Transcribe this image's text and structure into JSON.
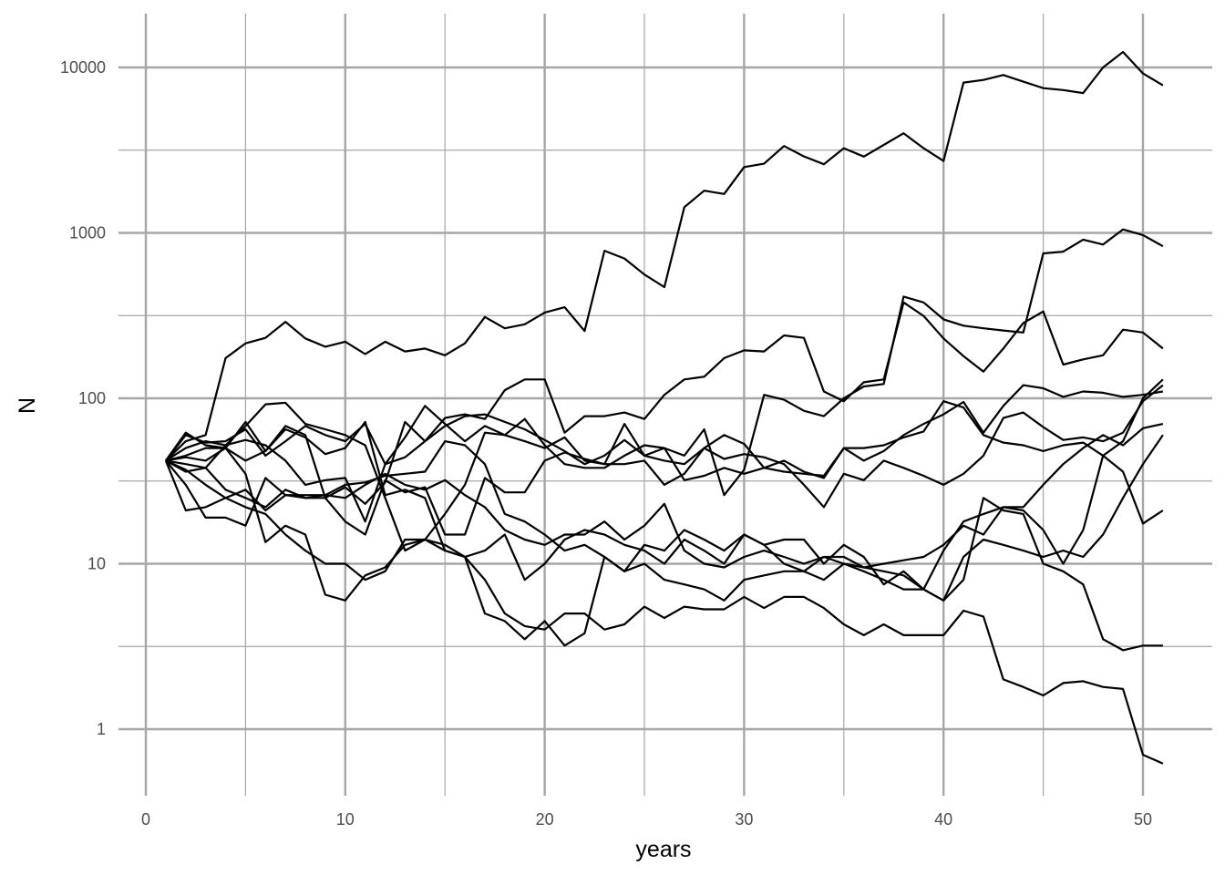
{
  "chart_data": {
    "type": "line",
    "title": "",
    "xlabel": "years",
    "ylabel": "N",
    "y_scale": "log10",
    "xlim": [
      0,
      52.5
    ],
    "ylim": [
      0.45,
      22000
    ],
    "x_ticks": [
      0,
      10,
      20,
      30,
      40,
      50
    ],
    "x_tick_labels": [
      "0",
      "10",
      "20",
      "30",
      "40",
      "50"
    ],
    "x_minor_ticks": [
      5,
      15,
      25,
      35,
      45
    ],
    "y_ticks": [
      1,
      10,
      100,
      1000,
      10000
    ],
    "y_tick_labels": [
      "1",
      "10",
      "100",
      "1000",
      "10000"
    ],
    "y_minor_ticks": [
      3.162,
      31.62,
      316.2,
      3162
    ],
    "grid": true,
    "legend": "none",
    "line_color": "#000000",
    "grid_color": "#a6a6a6",
    "x": [
      1,
      2,
      3,
      4,
      5,
      6,
      7,
      8,
      9,
      10,
      11,
      12,
      13,
      14,
      15,
      16,
      17,
      18,
      19,
      20,
      21,
      22,
      23,
      24,
      25,
      26,
      27,
      28,
      29,
      30,
      31,
      32,
      33,
      34,
      35,
      36,
      37,
      38,
      39,
      40,
      41,
      42,
      43,
      44,
      45,
      46,
      47,
      48,
      49,
      50,
      51
    ],
    "series": [
      {
        "values": [
          42,
          62,
          52,
          50,
          72,
          48,
          68,
          60,
          25,
          29,
          23,
          31,
          72,
          55,
          76,
          80,
          75,
          112,
          130,
          130,
          62,
          78,
          78,
          82,
          75,
          105,
          130,
          135,
          175,
          195,
          192,
          240,
          232,
          110,
          96,
          125,
          130,
          380,
          315,
          230,
          180,
          145,
          200,
          285,
          335,
          160,
          172,
          182,
          260,
          250,
          200
        ]
      },
      {
        "values": [
          42,
          55,
          60,
          175,
          215,
          232,
          290,
          230,
          205,
          220,
          185,
          220,
          192,
          200,
          182,
          215,
          310,
          265,
          280,
          330,
          355,
          255,
          780,
          700,
          560,
          470,
          1430,
          1800,
          1720,
          2500,
          2620,
          3350,
          2900,
          2600,
          3250,
          2890,
          3400,
          4000,
          3250,
          2720,
          8100,
          8400,
          9000,
          8200,
          7500,
          7300,
          7000,
          10000,
          12400,
          9200,
          7800
        ]
      },
      {
        "values": [
          42,
          60,
          54,
          55,
          65,
          45,
          55,
          68,
          60,
          55,
          70,
          40,
          44,
          55,
          68,
          78,
          80,
          72,
          65,
          56,
          48,
          40,
          45,
          56,
          45,
          50,
          45,
          65,
          26,
          37,
          105,
          98,
          84,
          78,
          100,
          118,
          122,
          412,
          380,
          300,
          275,
          265,
          257,
          250,
          752,
          770,
          910,
          850,
          1050,
          970,
          830
        ]
      },
      {
        "values": [
          42,
          50,
          55,
          52,
          68,
          92,
          94,
          70,
          65,
          60,
          52,
          25,
          12,
          14,
          20,
          30,
          62,
          60,
          55,
          50,
          58,
          42,
          40,
          70,
          45,
          42,
          40,
          50,
          43,
          46,
          44,
          40,
          30,
          22,
          35,
          32,
          42,
          38,
          34,
          30,
          35,
          45,
          76,
          82,
          67,
          56,
          58,
          55,
          62,
          96,
          120
        ]
      },
      {
        "values": [
          42,
          44,
          42,
          50,
          42,
          48,
          65,
          58,
          46,
          50,
          72,
          26,
          28,
          25,
          12,
          11,
          12,
          15,
          8,
          10,
          14,
          16,
          15,
          13,
          12,
          10,
          14,
          12,
          10,
          15,
          13,
          10,
          9,
          8,
          10,
          9,
          8,
          7,
          7,
          12,
          18,
          20,
          22,
          21,
          16,
          10,
          16,
          45,
          55,
          100,
          130
        ]
      },
      {
        "values": [
          42,
          37,
          30,
          25,
          22,
          20,
          15,
          12,
          10,
          10,
          8,
          9,
          14,
          14,
          13,
          11,
          5,
          4.5,
          3.5,
          4.5,
          3.2,
          3.8,
          11,
          9,
          10,
          8,
          7.5,
          7,
          6,
          8,
          8.5,
          9,
          9,
          11,
          11,
          9.5,
          9,
          8.5,
          7,
          6,
          8,
          25,
          21,
          20,
          10,
          9,
          7.5,
          3.5,
          3,
          3.2,
          3.2
        ]
      },
      {
        "values": [
          42,
          40,
          38,
          28,
          25,
          22,
          28,
          25,
          26,
          25,
          30,
          35,
          30,
          28,
          32,
          26,
          22,
          16,
          14,
          13,
          15,
          15,
          18,
          14,
          17,
          23,
          12,
          10,
          9.5,
          11,
          12,
          11,
          10,
          11,
          10,
          9.5,
          10,
          10.5,
          11,
          13,
          17,
          15,
          22,
          22,
          30,
          40,
          50,
          60,
          52,
          66,
          70
        ]
      },
      {
        "values": [
          42,
          45,
          50,
          50,
          35,
          13.5,
          17,
          15,
          6.5,
          6,
          8.5,
          9.5,
          13,
          14,
          12,
          11,
          8,
          5,
          4.2,
          4,
          5,
          5,
          4,
          4.3,
          5.5,
          4.7,
          5.5,
          5.3,
          5.3,
          6.3,
          5.4,
          6.3,
          6.3,
          5.4,
          4.3,
          3.7,
          4.3,
          3.7,
          3.7,
          3.7,
          5.2,
          4.8,
          2,
          1.8,
          1.6,
          1.9,
          1.95,
          1.8,
          1.75,
          0.7,
          0.62
        ]
      },
      {
        "values": [
          42,
          21,
          22,
          25,
          28,
          21,
          26,
          26,
          26,
          30,
          31,
          34,
          35,
          36,
          55,
          52,
          40,
          20,
          18,
          15,
          12,
          13,
          11,
          9,
          13,
          12,
          16,
          14,
          12,
          15,
          13,
          14,
          14,
          10,
          13,
          11,
          7.5,
          9,
          7,
          6,
          11,
          14,
          13,
          12,
          11,
          12,
          11,
          15,
          25,
          40,
          60
        ]
      },
      {
        "values": [
          42,
          30,
          19,
          19,
          17,
          33,
          26,
          25,
          25,
          18,
          15,
          32,
          27,
          29,
          15,
          15,
          33,
          27,
          27,
          42,
          47,
          43,
          40,
          40,
          42,
          30,
          35,
          50,
          60,
          53,
          38,
          42,
          36,
          33,
          50,
          50,
          52,
          58,
          63,
          96,
          88,
          60,
          54,
          52,
          48,
          52,
          54,
          45,
          36,
          17.5,
          21
        ]
      },
      {
        "values": [
          42,
          36,
          38,
          52,
          56,
          52,
          42,
          30,
          32,
          33,
          18,
          40,
          58,
          90,
          70,
          55,
          68,
          60,
          75,
          52,
          40,
          38,
          38,
          45,
          52,
          50,
          32,
          34,
          38,
          35,
          38,
          36,
          35,
          34,
          50,
          42,
          48,
          60,
          70,
          80,
          95,
          62,
          90,
          120,
          115,
          102,
          110,
          108,
          102,
          105,
          110
        ]
      }
    ]
  }
}
